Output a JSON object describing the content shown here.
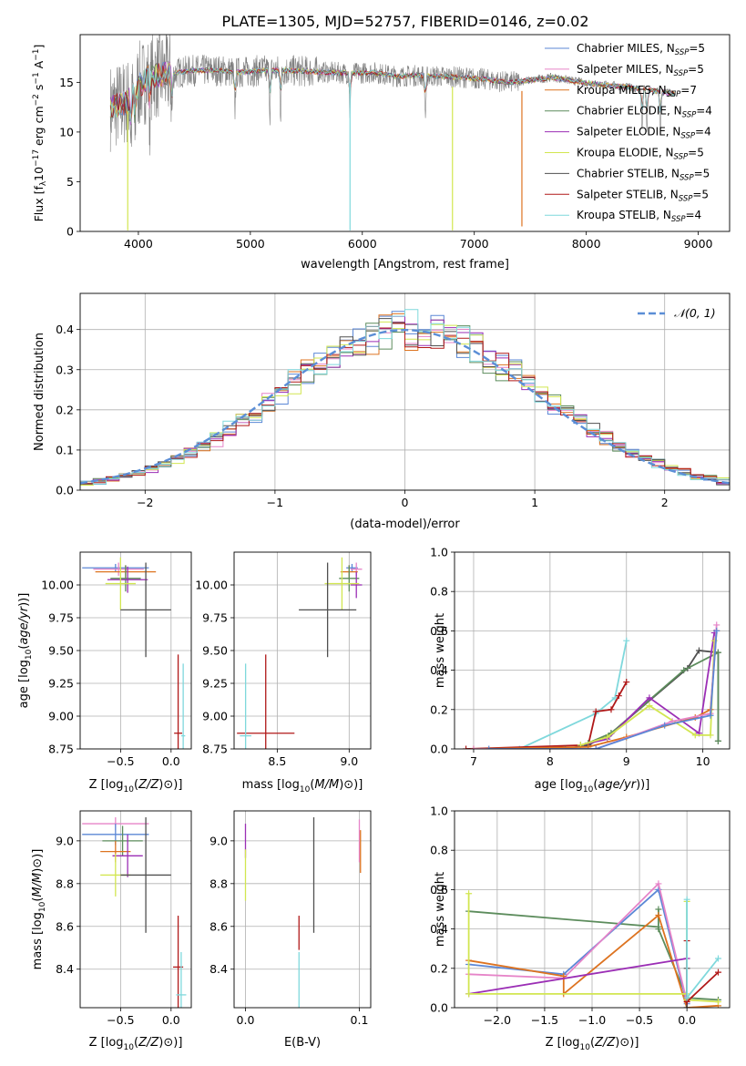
{
  "title": "PLATE=1305, MJD=52757, FIBERID=0146, z=0.02",
  "models": [
    {
      "name": "Chabrier MILES, N",
      "sub": "SSP",
      "suffix": "=5",
      "color": "#5b87d6"
    },
    {
      "name": "Salpeter MILES, N",
      "sub": "SSP",
      "suffix": "=5",
      "color": "#e684c8"
    },
    {
      "name": "Kroupa MILES, N",
      "sub": "SSP",
      "suffix": "=7",
      "color": "#dd7320"
    },
    {
      "name": "Chabrier ELODIE, N",
      "sub": "SSP",
      "suffix": "=4",
      "color": "#5c8c5c"
    },
    {
      "name": "Salpeter ELODIE, N",
      "sub": "SSP",
      "suffix": "=4",
      "color": "#9b2eb5"
    },
    {
      "name": "Kroupa ELODIE, N",
      "sub": "SSP",
      "suffix": "=5",
      "color": "#d2e650"
    },
    {
      "name": "Chabrier STELIB, N",
      "sub": "SSP",
      "suffix": "=5",
      "color": "#505050"
    },
    {
      "name": "Salpeter STELIB, N",
      "sub": "SSP",
      "suffix": "=5",
      "color": "#b01818"
    },
    {
      "name": "Kroupa STELIB, N",
      "sub": "SSP",
      "suffix": "=4",
      "color": "#7fd8dc"
    }
  ],
  "chart_data": [
    {
      "id": "spectrum",
      "type": "line",
      "xlabel": "wavelength [Angstrom, rest frame]",
      "ylabel_parts": [
        "Flux [f",
        "λ",
        "10",
        "−17",
        " erg cm",
        "−2",
        " s",
        "−1",
        " A",
        "−1",
        "]"
      ],
      "xlim": [
        3480,
        9280
      ],
      "ylim": [
        0,
        19.8
      ],
      "xticks": [
        4000,
        5000,
        6000,
        7000,
        8000,
        9000
      ],
      "yticks": [
        0,
        5,
        10,
        15
      ],
      "grid": false,
      "legend": "top-right",
      "observed_color": "#808080",
      "continuum": [
        [
          3750,
          12.5
        ],
        [
          3900,
          13.0
        ],
        [
          4000,
          14.6
        ],
        [
          4100,
          15.6
        ],
        [
          4300,
          15.9
        ],
        [
          4500,
          16.2
        ],
        [
          4700,
          16.2
        ],
        [
          4900,
          16.0
        ],
        [
          5100,
          16.2
        ],
        [
          5300,
          16.2
        ],
        [
          5500,
          16.1
        ],
        [
          5700,
          16.0
        ],
        [
          5900,
          15.9
        ],
        [
          6100,
          16.0
        ],
        [
          6300,
          15.6
        ],
        [
          6500,
          15.7
        ],
        [
          6700,
          15.6
        ],
        [
          6900,
          15.5
        ],
        [
          7100,
          15.3
        ],
        [
          7300,
          15.0
        ],
        [
          7500,
          15.2
        ],
        [
          7700,
          15.5
        ],
        [
          7900,
          15.1
        ],
        [
          8100,
          14.8
        ],
        [
          8300,
          14.6
        ],
        [
          8500,
          14.3
        ],
        [
          8700,
          14.0
        ],
        [
          8800,
          13.8
        ]
      ],
      "absorption_features": [
        3934,
        3969,
        4101,
        4300,
        4861,
        5175,
        5270,
        5890,
        6563,
        8498,
        8542,
        8662
      ],
      "model_spikes": [
        {
          "x": 3905,
          "to": 0.1,
          "model": 5
        },
        {
          "x": 5890,
          "to": 0.1,
          "model": 8
        },
        {
          "x": 6805,
          "to": 0.1,
          "model": 5
        },
        {
          "x": 7425,
          "to": 0.5,
          "model": 2
        }
      ]
    },
    {
      "id": "residual-hist",
      "type": "line",
      "xlabel": "(data-model)/error",
      "ylabel": "Normed distribution",
      "xlim": [
        -2.5,
        2.5
      ],
      "ylim": [
        0,
        0.49
      ],
      "xticks": [
        -2,
        -1,
        0,
        1,
        2
      ],
      "yticks": [
        0.0,
        0.1,
        0.2,
        0.3,
        0.4
      ],
      "grid": true,
      "legend": "top-right",
      "gaussian_label": "𝒩(0, 1)",
      "gaussian_color": "#5b8ed6",
      "bins": [
        -2.5,
        2.5,
        50
      ]
    },
    {
      "id": "age-vs-Z",
      "type": "scatter",
      "xlabel": "Z [log10(Z/Z⊙)]",
      "ylabel": "age  [log10(age/yr)]",
      "xlim": [
        -0.9,
        0.2
      ],
      "ylim": [
        8.75,
        10.25
      ],
      "xticks": [
        -0.5,
        0.0
      ],
      "yticks": [
        8.75,
        9.0,
        9.25,
        9.5,
        9.75,
        10.0
      ],
      "grid": true,
      "points": [
        {
          "model": 0,
          "x": -0.55,
          "y": 10.13,
          "xerr": 0.33,
          "yerr": 0.03
        },
        {
          "model": 1,
          "x": -0.52,
          "y": 10.12,
          "xerr": 0.25,
          "yerr": 0.05
        },
        {
          "model": 2,
          "x": -0.45,
          "y": 10.1,
          "xerr": 0.3,
          "yerr": 0.05
        },
        {
          "model": 3,
          "x": -0.45,
          "y": 10.05,
          "xerr": 0.15,
          "yerr": 0.1
        },
        {
          "model": 4,
          "x": -0.43,
          "y": 10.04,
          "xerr": 0.2,
          "yerr": 0.1
        },
        {
          "model": 5,
          "x": -0.5,
          "y": 10.01,
          "xerr": 0.15,
          "yerr": 0.2
        },
        {
          "model": 6,
          "x": -0.25,
          "y": 9.81,
          "xerr": 0.25,
          "yerr": 0.36
        },
        {
          "model": 7,
          "x": 0.07,
          "y": 8.87,
          "xerr": 0.04,
          "yerr": 0.6
        },
        {
          "model": 8,
          "x": 0.12,
          "y": 8.85,
          "xerr": 0.02,
          "yerr": 0.55
        }
      ]
    },
    {
      "id": "age-vs-mass",
      "type": "scatter",
      "xlabel": "mass [log10(M/M⊙)]",
      "ylabel": "",
      "xlim": [
        8.2,
        9.15
      ],
      "ylim": [
        8.75,
        10.25
      ],
      "xticks": [
        8.5,
        9.0
      ],
      "yticks": [
        8.75,
        9.0,
        9.25,
        9.5,
        9.75,
        10.0
      ],
      "grid": true,
      "points": [
        {
          "model": 0,
          "x": 9.02,
          "y": 10.13,
          "xerr": 0.04,
          "yerr": 0.03
        },
        {
          "model": 1,
          "x": 9.05,
          "y": 10.12,
          "xerr": 0.04,
          "yerr": 0.05
        },
        {
          "model": 2,
          "x": 9.0,
          "y": 10.1,
          "xerr": 0.06,
          "yerr": 0.05
        },
        {
          "model": 3,
          "x": 9.0,
          "y": 10.05,
          "xerr": 0.07,
          "yerr": 0.1
        },
        {
          "model": 4,
          "x": 9.05,
          "y": 10.0,
          "xerr": 0.04,
          "yerr": 0.1
        },
        {
          "model": 5,
          "x": 8.95,
          "y": 10.01,
          "xerr": 0.12,
          "yerr": 0.2
        },
        {
          "model": 6,
          "x": 8.85,
          "y": 9.81,
          "xerr": 0.2,
          "yerr": 0.36
        },
        {
          "model": 7,
          "x": 8.42,
          "y": 8.87,
          "xerr": 0.2,
          "yerr": 0.6
        },
        {
          "model": 8,
          "x": 8.28,
          "y": 8.85,
          "xerr": 0.04,
          "yerr": 0.55
        }
      ]
    },
    {
      "id": "massweight-vs-age",
      "type": "line",
      "xlabel": "age  [log10(age/yr)]",
      "ylabel": "mass weight",
      "xlim": [
        6.75,
        10.35
      ],
      "ylim": [
        0,
        1.0
      ],
      "xticks": [
        7,
        8,
        9,
        10
      ],
      "yticks": [
        0.0,
        0.2,
        0.4,
        0.6,
        0.8,
        1.0
      ],
      "grid": true,
      "series": [
        {
          "model": 8,
          "points": [
            [
              7.6,
              0.0
            ],
            [
              8.6,
              0.18
            ],
            [
              8.85,
              0.26
            ],
            [
              9.0,
              0.55
            ]
          ]
        },
        {
          "model": 7,
          "points": [
            [
              6.9,
              0.0
            ],
            [
              8.5,
              0.02
            ],
            [
              8.6,
              0.19
            ],
            [
              8.8,
              0.2
            ],
            [
              8.9,
              0.27
            ],
            [
              9.0,
              0.34
            ]
          ]
        },
        {
          "model": 6,
          "points": [
            [
              8.2,
              0.0
            ],
            [
              8.5,
              0.02
            ],
            [
              8.8,
              0.08
            ],
            [
              9.8,
              0.41
            ],
            [
              9.95,
              0.5
            ],
            [
              10.2,
              0.49
            ],
            [
              10.2,
              0.04
            ]
          ]
        },
        {
          "model": 3,
          "points": [
            [
              8.5,
              0.03
            ],
            [
              8.8,
              0.08
            ],
            [
              9.75,
              0.4
            ],
            [
              10.2,
              0.49
            ],
            [
              10.2,
              0.04
            ]
          ]
        },
        {
          "model": 4,
          "points": [
            [
              8.4,
              0.02
            ],
            [
              8.75,
              0.05
            ],
            [
              9.3,
              0.26
            ],
            [
              9.95,
              0.08
            ],
            [
              10.15,
              0.59
            ]
          ]
        },
        {
          "model": 5,
          "points": [
            [
              8.4,
              0.02
            ],
            [
              8.75,
              0.06
            ],
            [
              9.3,
              0.22
            ],
            [
              9.9,
              0.07
            ],
            [
              10.1,
              0.07
            ],
            [
              10.15,
              0.55
            ]
          ]
        },
        {
          "model": 2,
          "points": [
            [
              7.0,
              0.0
            ],
            [
              8.5,
              0.01
            ],
            [
              9.0,
              0.06
            ],
            [
              9.9,
              0.16
            ],
            [
              10.1,
              0.2
            ],
            [
              10.18,
              0.6
            ]
          ]
        },
        {
          "model": 1,
          "points": [
            [
              7.0,
              0.0
            ],
            [
              8.6,
              0.0
            ],
            [
              9.6,
              0.14
            ],
            [
              10.1,
              0.18
            ],
            [
              10.18,
              0.63
            ]
          ]
        },
        {
          "model": 0,
          "points": [
            [
              7.2,
              0.0
            ],
            [
              8.6,
              0.0
            ],
            [
              9.5,
              0.12
            ],
            [
              10.1,
              0.17
            ],
            [
              10.18,
              0.6
            ]
          ]
        }
      ]
    },
    {
      "id": "mass-vs-Z",
      "type": "scatter",
      "xlabel": "Z [log10(Z/Z⊙)]",
      "ylabel": "mass [log10(M/M⊙)]",
      "xlim": [
        -0.9,
        0.2
      ],
      "ylim": [
        8.22,
        9.14
      ],
      "xticks": [
        -0.5,
        0.0
      ],
      "yticks": [
        8.4,
        8.6,
        8.8,
        9.0
      ],
      "grid": true,
      "points": [
        {
          "model": 1,
          "x": -0.55,
          "y": 9.08,
          "xerr": 0.33,
          "yerr": 0.03
        },
        {
          "model": 0,
          "x": -0.55,
          "y": 9.03,
          "xerr": 0.33,
          "yerr": 0.05
        },
        {
          "model": 3,
          "x": -0.48,
          "y": 9.0,
          "xerr": 0.2,
          "yerr": 0.07
        },
        {
          "model": 2,
          "x": -0.55,
          "y": 8.95,
          "xerr": 0.15,
          "yerr": 0.05
        },
        {
          "model": 4,
          "x": -0.43,
          "y": 8.93,
          "xerr": 0.15,
          "yerr": 0.1
        },
        {
          "model": 5,
          "x": -0.55,
          "y": 8.84,
          "xerr": 0.15,
          "yerr": 0.1
        },
        {
          "model": 6,
          "x": -0.25,
          "y": 8.84,
          "xerr": 0.25,
          "yerr": 0.27
        },
        {
          "model": 7,
          "x": 0.07,
          "y": 8.41,
          "xerr": 0.05,
          "yerr": 0.24
        },
        {
          "model": 8,
          "x": 0.1,
          "y": 8.28,
          "xerr": 0.05,
          "yerr": 0.2
        }
      ]
    },
    {
      "id": "mass-vs-EBV",
      "type": "scatter",
      "xlabel": "E(B-V)",
      "ylabel": "",
      "xlim": [
        -0.01,
        0.11
      ],
      "ylim": [
        8.22,
        9.14
      ],
      "xticks": [
        0.0,
        0.1
      ],
      "yticks": [
        8.4,
        8.6,
        8.8,
        9.0
      ],
      "grid": true,
      "points": [
        {
          "model": 4,
          "x": 0.0,
          "y": 9.0,
          "xerr": 0,
          "yerr": 0.08
        },
        {
          "model": 5,
          "x": 0.0,
          "y": 8.84,
          "xerr": 0,
          "yerr": 0.12
        },
        {
          "model": 6,
          "x": 0.06,
          "y": 8.84,
          "xerr": 0,
          "yerr": 0.27
        },
        {
          "model": 7,
          "x": 0.047,
          "y": 8.57,
          "xerr": 0,
          "yerr": 0.08
        },
        {
          "model": 8,
          "x": 0.047,
          "y": 8.33,
          "xerr": 0,
          "yerr": 0.15
        },
        {
          "model": 1,
          "x": 0.1,
          "y": 9.0,
          "xerr": 0,
          "yerr": 0.1
        },
        {
          "model": 2,
          "x": 0.101,
          "y": 8.95,
          "xerr": 0,
          "yerr": 0.1
        }
      ]
    },
    {
      "id": "massweight-vs-Z",
      "type": "line",
      "xlabel": "Z [log10(Z/Z⊙)]",
      "ylabel": "mass weight",
      "xlim": [
        -2.45,
        0.45
      ],
      "ylim": [
        0,
        1.0
      ],
      "xticks": [
        -2.0,
        -1.5,
        -1.0,
        -0.5,
        0.0
      ],
      "yticks": [
        0.0,
        0.2,
        0.4,
        0.6,
        0.8,
        1.0
      ],
      "grid": true,
      "series": [
        {
          "model": 3,
          "points": [
            [
              -2.3,
              0.49
            ],
            [
              -0.3,
              0.41
            ],
            [
              -0.3,
              0.5
            ],
            [
              -0.3,
              0.4
            ],
            [
              0.0,
              0.05
            ],
            [
              0.33,
              0.04
            ]
          ]
        },
        {
          "model": 0,
          "points": [
            [
              -2.3,
              0.22
            ],
            [
              -1.3,
              0.17
            ],
            [
              -0.3,
              0.6
            ],
            [
              0.0,
              0.02
            ]
          ]
        },
        {
          "model": 1,
          "points": [
            [
              -2.3,
              0.17
            ],
            [
              -1.3,
              0.15
            ],
            [
              -0.3,
              0.63
            ],
            [
              0.0,
              0.03
            ]
          ]
        },
        {
          "model": 2,
          "points": [
            [
              -2.3,
              0.24
            ],
            [
              -1.3,
              0.16
            ],
            [
              -1.3,
              0.07
            ],
            [
              -0.3,
              0.47
            ],
            [
              0.0,
              0.0
            ],
            [
              0.33,
              0.01
            ]
          ]
        },
        {
          "model": 4,
          "points": [
            [
              -2.3,
              0.07
            ],
            [
              0.0,
              0.25
            ]
          ]
        },
        {
          "model": 5,
          "points": [
            [
              -2.3,
              0.58
            ],
            [
              -2.3,
              0.07
            ],
            [
              0.0,
              0.07
            ],
            [
              0.0,
              0.54
            ],
            [
              0.0,
              0.04
            ],
            [
              0.33,
              0.03
            ]
          ]
        },
        {
          "model": 6,
          "points": [
            [
              0.0,
              0.0
            ],
            [
              0.0,
              0.2
            ]
          ]
        },
        {
          "model": 7,
          "points": [
            [
              0.0,
              0.34
            ],
            [
              0.0,
              0.03
            ],
            [
              0.33,
              0.18
            ]
          ]
        },
        {
          "model": 8,
          "points": [
            [
              0.0,
              0.55
            ],
            [
              0.0,
              0.05
            ],
            [
              0.33,
              0.25
            ]
          ]
        }
      ]
    }
  ]
}
